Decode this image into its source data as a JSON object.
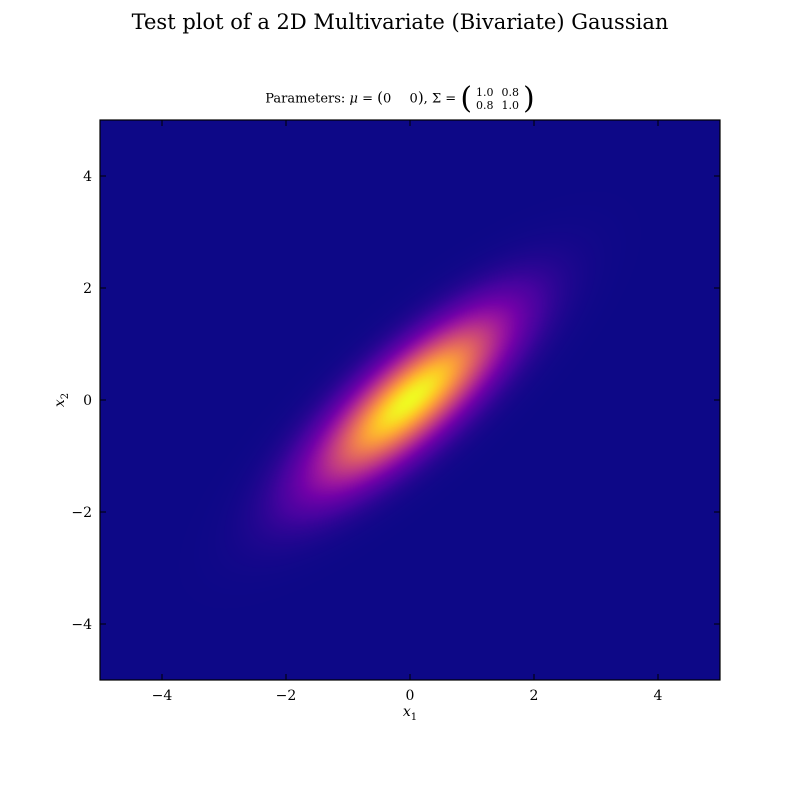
{
  "figure": {
    "suptitle": "Test plot of a 2D Multivariate (Bivariate) Gaussian",
    "parameters_prefix": "Parameters:",
    "mu_symbol": "μ",
    "mu_values": [
      "0",
      "0"
    ],
    "sigma_symbol": "Σ",
    "sigma_matrix": [
      [
        "1.0",
        "0.8"
      ],
      [
        "0.8",
        "1.0"
      ]
    ]
  },
  "chart_data": {
    "type": "heatmap",
    "title": "Parameters: μ = (0 0), Σ = [[1.0, 0.8], [0.8, 1.0]]",
    "xlabel": "x1",
    "ylabel": "x2",
    "xlabel_main": "x",
    "xlabel_sub": "1",
    "ylabel_main": "x",
    "ylabel_sub": "2",
    "xlim": [
      -5,
      5
    ],
    "ylim": [
      -5,
      5
    ],
    "xticks": [
      -4,
      -2,
      0,
      2,
      4
    ],
    "yticks": [
      -4,
      -2,
      0,
      2,
      4
    ],
    "xtick_labels": [
      "−4",
      "−2",
      "0",
      "2",
      "4"
    ],
    "ytick_labels": [
      "−4",
      "−2",
      "0",
      "2",
      "4"
    ],
    "colormap": "plasma",
    "colormap_stops": [
      "#0d0887",
      "#46039f",
      "#7201a8",
      "#9c179e",
      "#bd3786",
      "#d8576b",
      "#ed7953",
      "#fb9f3a",
      "#fdca26",
      "#f0f921"
    ],
    "distribution": {
      "mean": [
        0,
        0
      ],
      "covariance": [
        [
          1.0,
          0.8
        ],
        [
          0.8,
          1.0
        ]
      ]
    },
    "grid": false
  }
}
